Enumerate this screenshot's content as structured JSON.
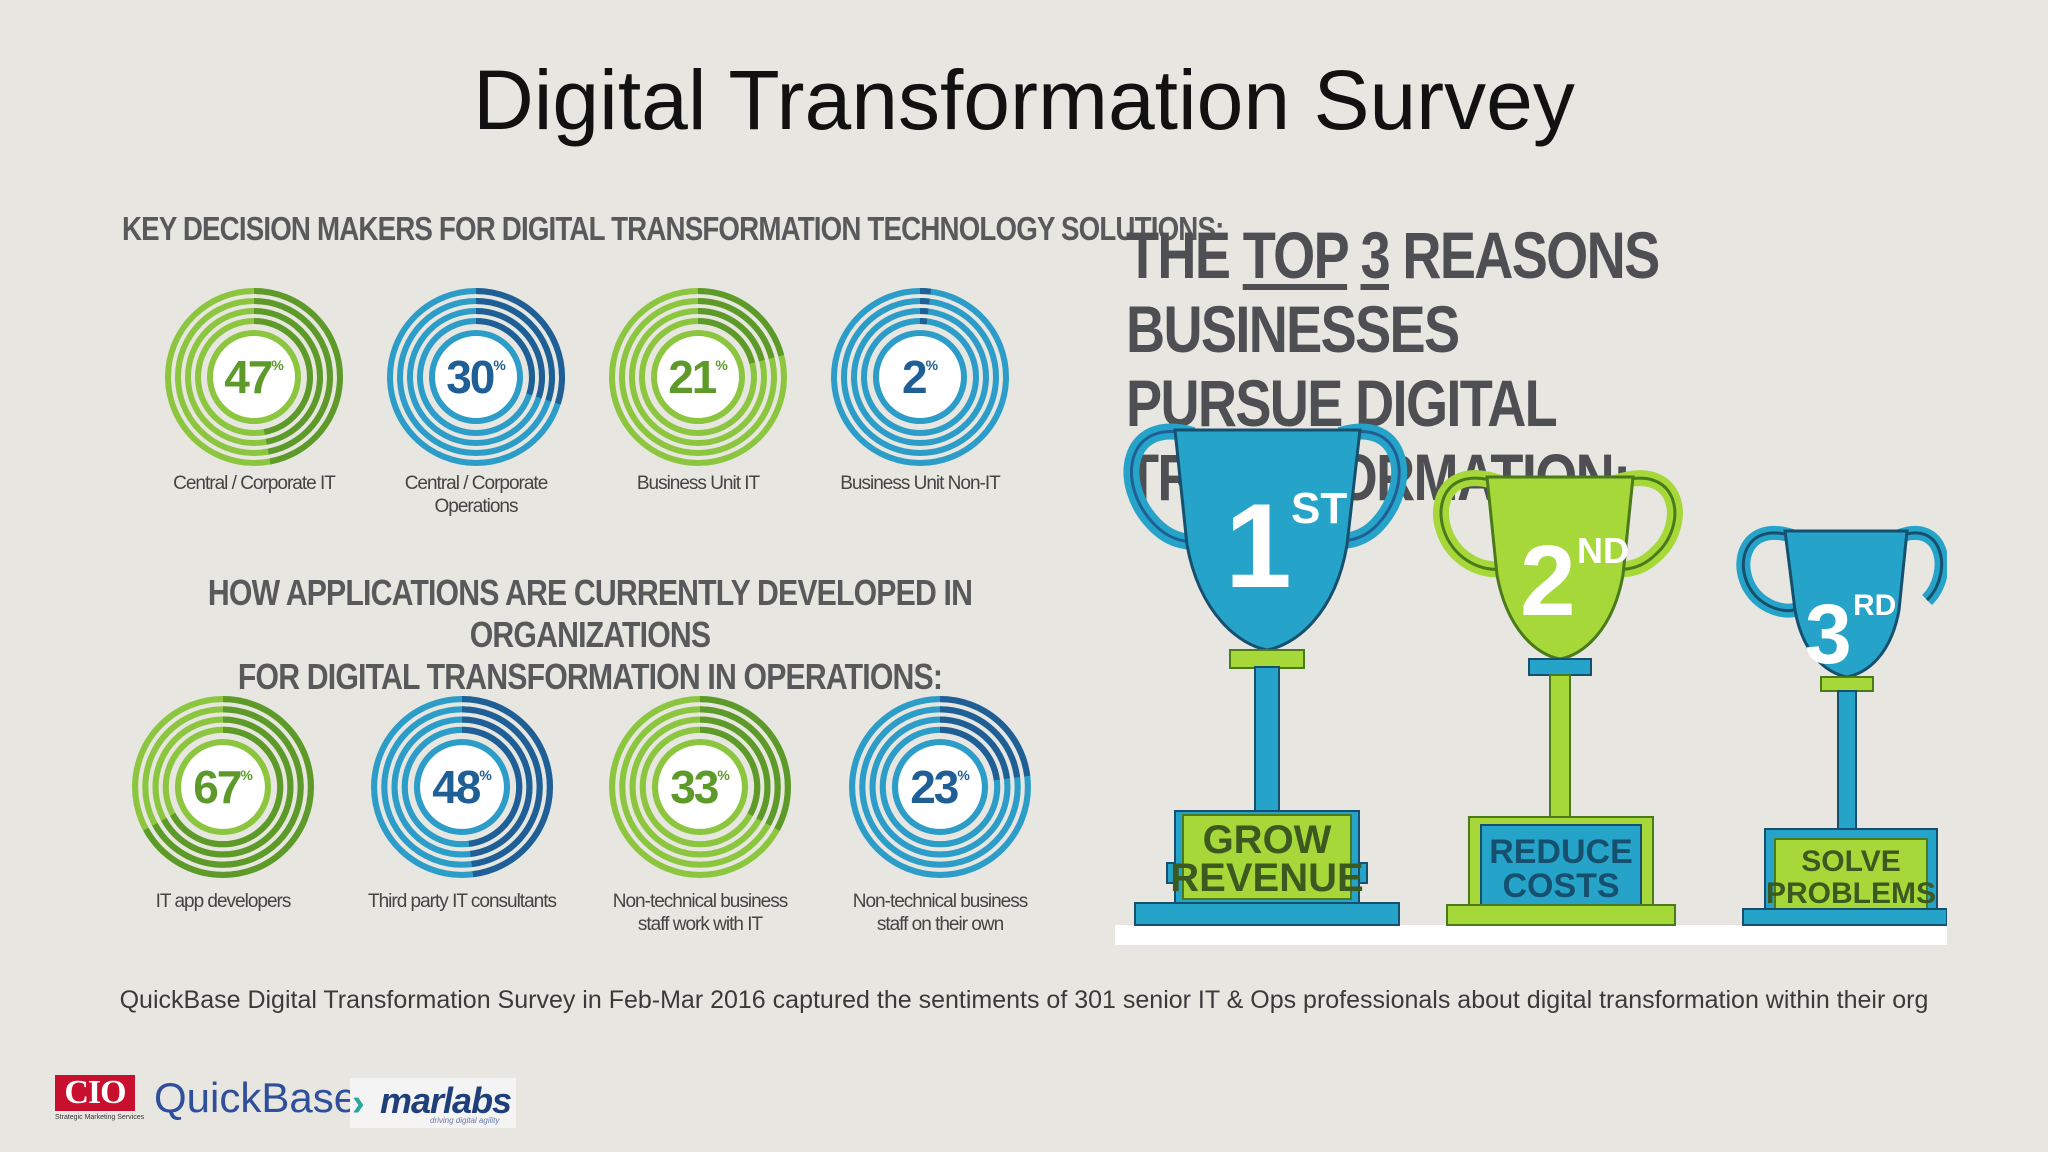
{
  "title": "Digital Transformation Survey",
  "decision_makers": {
    "heading": "KEY DECISION MAKERS FOR DIGITAL TRANSFORMATION TECHNOLOGY SOLUTIONS:",
    "items": [
      {
        "value": "47",
        "percent_sign": "%",
        "label": "Central / Corporate IT",
        "color": "green"
      },
      {
        "value": "30",
        "percent_sign": "%",
        "label": "Central / Corporate Operations",
        "color": "blue"
      },
      {
        "value": "21",
        "percent_sign": "%",
        "label": "Business Unit IT",
        "color": "green"
      },
      {
        "value": "2",
        "percent_sign": "%",
        "label": "Business Unit Non-IT",
        "color": "blue"
      }
    ]
  },
  "development": {
    "heading_line1": "HOW APPLICATIONS ARE CURRENTLY DEVELOPED IN ORGANIZATIONS",
    "heading_line2": "FOR DIGITAL TRANSFORMATION IN OPERATIONS:",
    "items": [
      {
        "value": "67",
        "percent_sign": "%",
        "label": "IT app developers",
        "label2": "",
        "color": "green"
      },
      {
        "value": "48",
        "percent_sign": "%",
        "label": "Third party IT consultants",
        "label2": "",
        "color": "blue"
      },
      {
        "value": "33",
        "percent_sign": "%",
        "label": "Non-technical business",
        "label2": "staff work with IT",
        "color": "green"
      },
      {
        "value": "23",
        "percent_sign": "%",
        "label": "Non-technical business",
        "label2": "staff on their own",
        "color": "blue"
      }
    ]
  },
  "reasons": {
    "heading_pre": "THE ",
    "heading_top": "TOP",
    "heading_num": "3",
    "heading_rest": " REASONS BUSINESSES",
    "heading_line2": "PURSUE DIGITAL TRANSFORMATION:",
    "trophies": [
      {
        "rank": "1",
        "suffix": "ST",
        "line1": "GROW",
        "line2": "REVENUE"
      },
      {
        "rank": "2",
        "suffix": "ND",
        "line1": "REDUCE",
        "line2": "COSTS"
      },
      {
        "rank": "3",
        "suffix": "RD",
        "line1": "SOLVE",
        "line2": "PROBLEMS"
      }
    ]
  },
  "footnote": "QuickBase Digital Transformation Survey in Feb-Mar 2016 captured the sentiments of 301 senior IT & Ops professionals about digital transformation within their org",
  "logos": {
    "cio": "CIO",
    "cio_sub": "Strategic Marketing Services",
    "quickbase": "QuickBase",
    "marlabs": "marlabs",
    "marlabs_tag": "driving digital agility"
  },
  "colors": {
    "green": "#8cc63f",
    "green_dark": "#5e9a2a",
    "blue": "#2c9cc8",
    "blue_dark": "#1f5f95",
    "lime": "#a6d83a",
    "cyan": "#26a3c9"
  }
}
